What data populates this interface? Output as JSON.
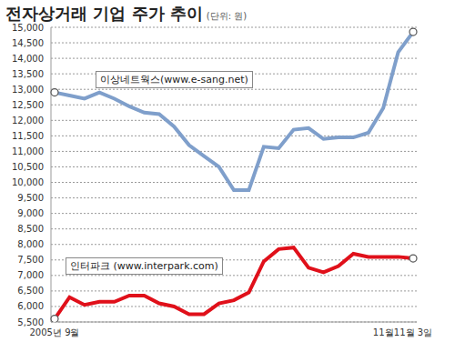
{
  "chart_data": {
    "type": "line",
    "title": "전자상거래 기업 주가 추이",
    "subtitle": "(단위: 원)",
    "categories": [
      "2005년 9월",
      null,
      null,
      null,
      null,
      null,
      null,
      null,
      null,
      null,
      null,
      null,
      null,
      null,
      null,
      null,
      null,
      null,
      null,
      null,
      null,
      null,
      "11월",
      null,
      "11월 3일"
    ],
    "series": [
      {
        "name": "이상네트웍스(www.e-sang.net)",
        "color": "#7f9fcb",
        "marker": "circle",
        "values": [
          12900,
          12800,
          12700,
          12900,
          12700,
          12450,
          12250,
          12200,
          11800,
          11200,
          10850,
          10500,
          9750,
          9750,
          11150,
          11100,
          11700,
          11750,
          11400,
          11450,
          11450,
          11600,
          12400,
          14200,
          14850
        ]
      },
      {
        "name": "인터파크 (www.interpark.com)",
        "color": "#e0101a",
        "marker": "circle",
        "values": [
          5600,
          6300,
          6050,
          6150,
          6150,
          6350,
          6350,
          6100,
          6000,
          5750,
          5750,
          6100,
          6200,
          6450,
          7450,
          7850,
          7900,
          7250,
          7100,
          7300,
          7700,
          7600,
          7600,
          7600,
          7550
        ]
      }
    ],
    "ylim": [
      5500,
      15000
    ],
    "yticks": [
      {
        "value": 5500,
        "label": "5,500"
      },
      {
        "value": 6000,
        "label": "6,000"
      },
      {
        "value": 6500,
        "label": "6,500"
      },
      {
        "value": 7000,
        "label": "7,000"
      },
      {
        "value": 7500,
        "label": "7,500"
      },
      {
        "value": 8000,
        "label": "8,000"
      },
      {
        "value": 8500,
        "label": "8,500"
      },
      {
        "value": 9000,
        "label": "9,000"
      },
      {
        "value": 9500,
        "label": "9,500"
      },
      {
        "value": 10000,
        "label": "10,000"
      },
      {
        "value": 10500,
        "label": "10,500"
      },
      {
        "value": 11000,
        "label": "11,000"
      },
      {
        "value": 11500,
        "label": "11,500"
      },
      {
        "value": 12000,
        "label": "12,000"
      },
      {
        "value": 12500,
        "label": "12,500"
      },
      {
        "value": 13000,
        "label": "13,000"
      },
      {
        "value": 13500,
        "label": "13,500"
      },
      {
        "value": 14000,
        "label": "14,000"
      },
      {
        "value": 14500,
        "label": "14,500"
      },
      {
        "value": 15000,
        "label": "15,000"
      }
    ],
    "grid": true,
    "legend": "none"
  }
}
